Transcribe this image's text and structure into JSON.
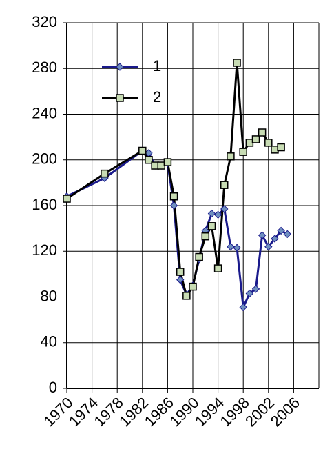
{
  "chart_data": {
    "type": "line",
    "xlim": [
      1970,
      2010
    ],
    "xticks": [
      1970,
      1974,
      1978,
      1982,
      1986,
      1990,
      1994,
      1998,
      2002,
      2006
    ],
    "ylim": [
      0,
      320
    ],
    "yticks": [
      0,
      40,
      80,
      120,
      160,
      200,
      240,
      280,
      320
    ],
    "grid": true,
    "legend": "upper-left",
    "series": [
      {
        "name": "1",
        "color": "#1a1a8c",
        "marker": "diamond",
        "x": [
          1970,
          1976,
          1982,
          1983,
          1984,
          1985,
          1986,
          1987,
          1988,
          1989,
          1990,
          1991,
          1992,
          1993,
          1994,
          1995,
          1996,
          1997,
          1998,
          1999,
          2000,
          2001,
          2002,
          2003,
          2004,
          2005
        ],
        "values": [
          168,
          184,
          208,
          206,
          195,
          195,
          197,
          160,
          95,
          82,
          90,
          113,
          138,
          153,
          152,
          157,
          124,
          123,
          71,
          83,
          87,
          134,
          124,
          131,
          138,
          135
        ]
      },
      {
        "name": "2",
        "color": "#000000",
        "marker": "square",
        "x": [
          1970,
          1976,
          1982,
          1983,
          1984,
          1985,
          1986,
          1987,
          1988,
          1989,
          1990,
          1991,
          1992,
          1993,
          1994,
          1995,
          1996,
          1997,
          1998,
          1999,
          2000,
          2001,
          2002,
          2003,
          2004
        ],
        "values": [
          166,
          188,
          208,
          200,
          195,
          195,
          198,
          168,
          102,
          81,
          89,
          115,
          133,
          142,
          105,
          178,
          203,
          285,
          207,
          215,
          218,
          224,
          215,
          209,
          211
        ]
      }
    ]
  }
}
